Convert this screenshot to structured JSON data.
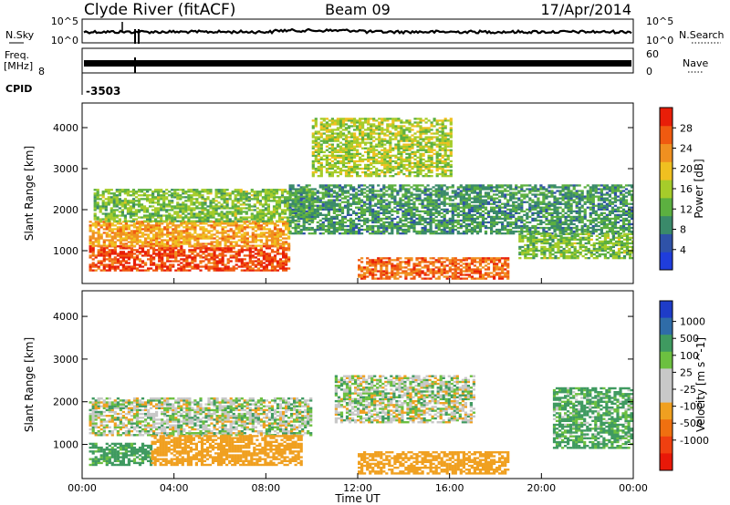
{
  "header": {
    "station": "Clyde River (fitACF)",
    "beam": "Beam 09",
    "date": "17/Apr/2014"
  },
  "noise_panel": {
    "left_label": "N.Sky",
    "right_label": "N.Search",
    "left_ticks": [
      "10^5",
      "10^0"
    ],
    "right_ticks": [
      "10^5",
      "10^0"
    ]
  },
  "freq_panel": {
    "left_label_1": "Freq.",
    "left_label_2": "[MHz]",
    "left_tick": "8",
    "right_label": "Nave",
    "right_ticks": [
      "60",
      "0"
    ]
  },
  "cpid_panel": {
    "label": "CPID",
    "value": "-3503"
  },
  "colors": {
    "power": [
      "#1f3ddc",
      "#2f52a8",
      "#3a8a6a",
      "#5cb040",
      "#a6cc2a",
      "#f0c020",
      "#f09020",
      "#f05a10",
      "#e81e08"
    ],
    "velocity": [
      "#1e3cc8",
      "#2f6ca8",
      "#3f9a60",
      "#6cc040",
      "#c8c8c8",
      "#c8c8c8",
      "#f0a020",
      "#f07010",
      "#f04010",
      "#e81808"
    ]
  },
  "chart_data": [
    {
      "type": "heatmap",
      "title": "",
      "xlabel": "",
      "ylabel": "Slant Range [km]",
      "xlim": [
        "00:00",
        "24:00"
      ],
      "ylim": [
        200,
        4600
      ],
      "x_tick_labels": [
        "00:00",
        "04:00",
        "08:00",
        "12:00",
        "16:00",
        "20:00",
        "00:00"
      ],
      "y_ticks": [
        1000,
        2000,
        3000,
        4000
      ],
      "colorbar": {
        "label": "Power [dB]",
        "range": [
          0,
          32
        ],
        "ticks": [
          "4",
          "8",
          "12",
          "16",
          "20",
          "24",
          "28"
        ]
      },
      "regions": [
        {
          "t_start": 0.3,
          "t_end": 9.0,
          "r_start": 500,
          "r_end": 1100,
          "value_db": 28
        },
        {
          "t_start": 0.3,
          "t_end": 9.0,
          "r_start": 1100,
          "r_end": 1700,
          "value_db": 22
        },
        {
          "t_start": 0.5,
          "t_end": 10.0,
          "r_start": 1700,
          "r_end": 2500,
          "value_db": 14
        },
        {
          "t_start": 12.0,
          "t_end": 18.5,
          "r_start": 300,
          "r_end": 800,
          "value_db": 26
        },
        {
          "t_start": 9.0,
          "t_end": 24.0,
          "r_start": 1400,
          "r_end": 2600,
          "value_db": 10
        },
        {
          "t_start": 19.0,
          "t_end": 24.0,
          "r_start": 800,
          "r_end": 1400,
          "value_db": 14
        },
        {
          "t_start": 10.0,
          "t_end": 16.0,
          "r_start": 2800,
          "r_end": 4200,
          "value_db": 16
        }
      ]
    },
    {
      "type": "heatmap",
      "title": "",
      "xlabel": "Time UT",
      "ylabel": "Slant Range [km]",
      "xlim": [
        "00:00",
        "24:00"
      ],
      "ylim": [
        200,
        4600
      ],
      "x_tick_labels": [
        "00:00",
        "04:00",
        "08:00",
        "12:00",
        "16:00",
        "20:00",
        "00:00"
      ],
      "y_ticks": [
        1000,
        2000,
        3000,
        4000
      ],
      "colorbar": {
        "label": "Velocity [m s^-1]",
        "range": [
          -1000,
          1000
        ],
        "ticks": [
          "1000",
          "500",
          "100",
          "25",
          "-25",
          "-100",
          "-500",
          "-1000"
        ]
      },
      "regions": [
        {
          "t_start": 0.3,
          "t_end": 10.0,
          "r_start": 1200,
          "r_end": 2100,
          "value_ms": 0
        },
        {
          "t_start": 0.3,
          "t_end": 3.0,
          "r_start": 500,
          "r_end": 1000,
          "value_ms": 200
        },
        {
          "t_start": 3.0,
          "t_end": 9.5,
          "r_start": 500,
          "r_end": 1200,
          "value_ms": -300
        },
        {
          "t_start": 12.0,
          "t_end": 18.5,
          "r_start": 300,
          "r_end": 800,
          "value_ms": -300
        },
        {
          "t_start": 11.0,
          "t_end": 17.0,
          "r_start": 1500,
          "r_end": 2600,
          "value_ms": 0
        },
        {
          "t_start": 20.5,
          "t_end": 24.0,
          "r_start": 900,
          "r_end": 2300,
          "value_ms": 150
        }
      ]
    }
  ]
}
